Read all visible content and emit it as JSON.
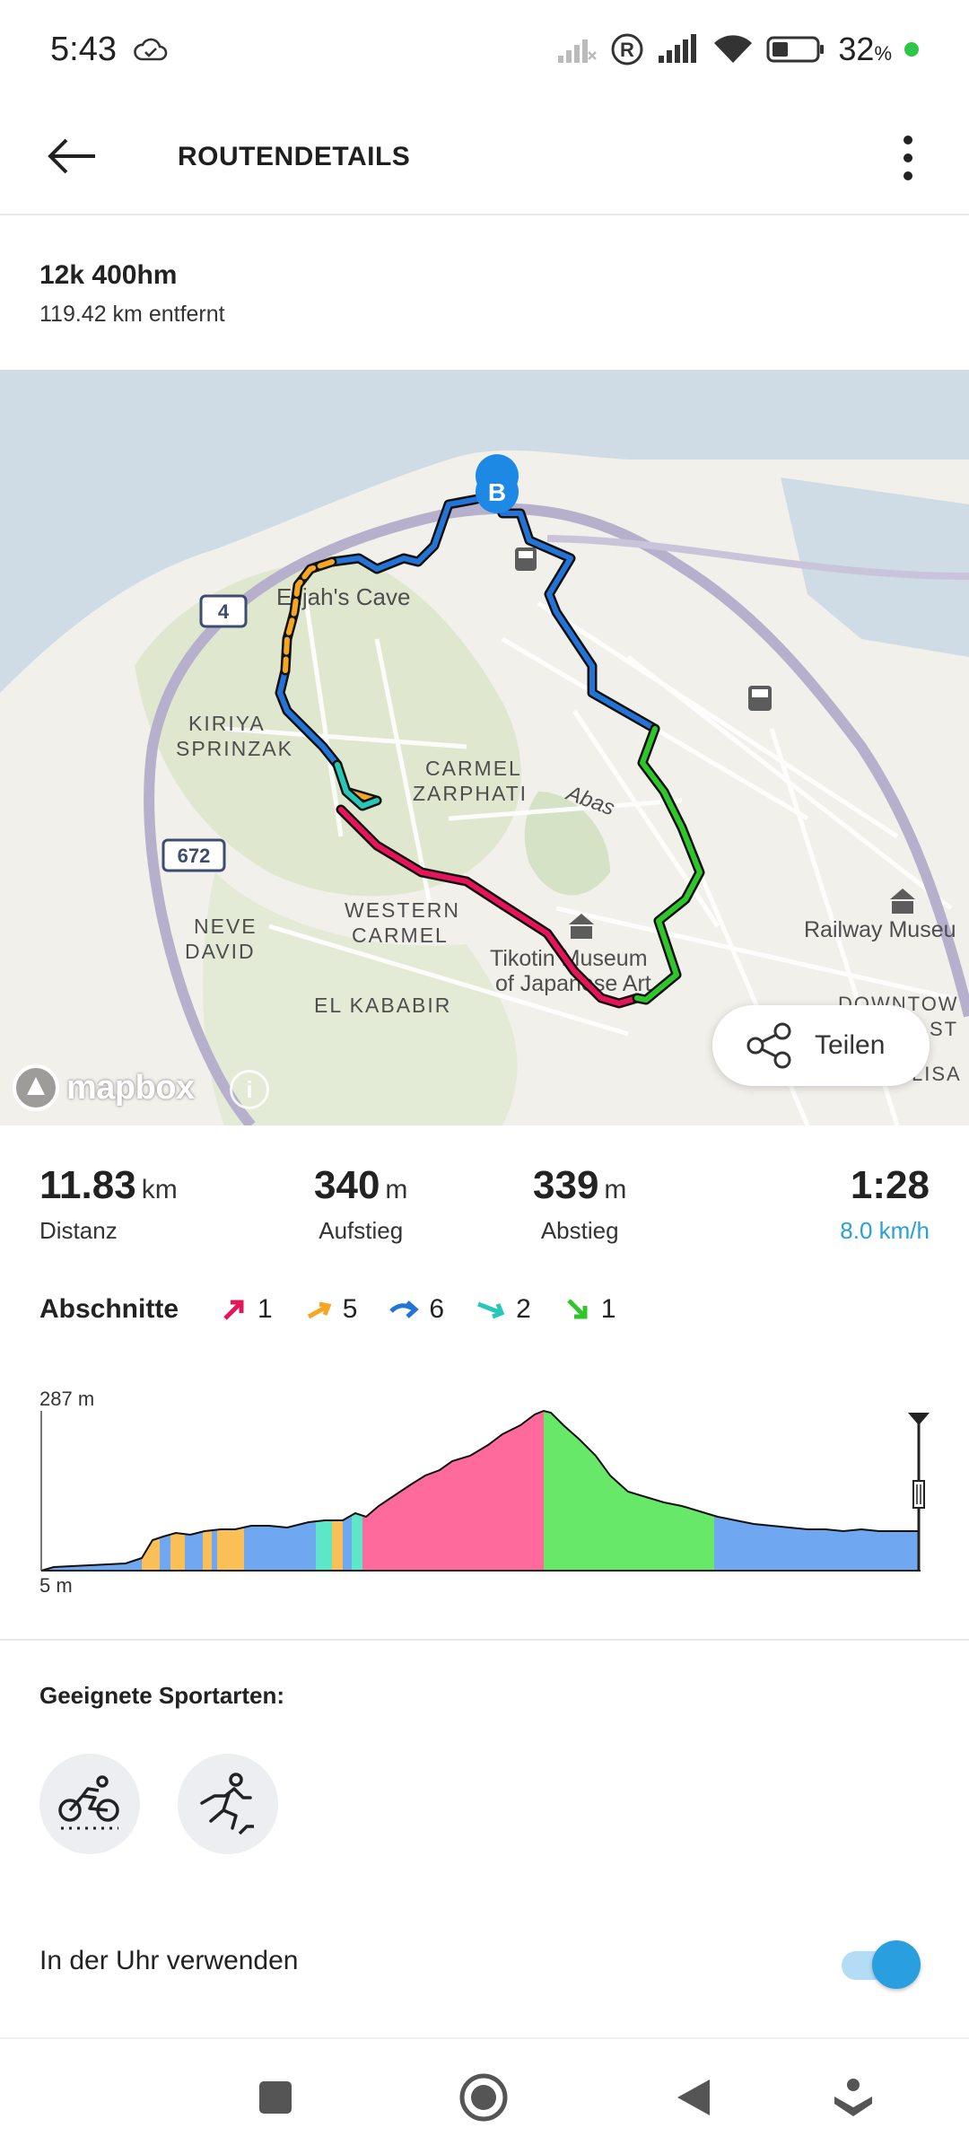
{
  "status_bar": {
    "time": "5:43",
    "battery_percent": "32",
    "battery_unit": "%",
    "icons": [
      "cloud-check-icon",
      "no-signal-icon",
      "registered-icon",
      "signal-icon",
      "wifi-icon",
      "battery-icon"
    ]
  },
  "app_bar": {
    "title": "ROUTENDETAILS",
    "back_icon": "arrow-left-icon",
    "menu_icon": "more-vertical-icon"
  },
  "route": {
    "name": "12k 400hm",
    "distance_away": "119.42 km entfernt"
  },
  "map": {
    "marker_label": "B",
    "labels": {
      "elijahs_cave": "Elijah's Cave",
      "kiriya": "KIRIYA",
      "sprinzak": "SPRINZAK",
      "carmel_zarphati_1": "CARMEL",
      "carmel_zarphati_2": "ZARPHATI",
      "abas": "Abas",
      "western_carmel_1": "WESTERN",
      "western_carmel_2": "CARMEL",
      "neve_david_1": "NEVE",
      "neve_david_2": "DAVID",
      "el_kababir": "EL KABABIR",
      "tikotin_1": "Tikotin Museum",
      "tikotin_2": "of Japanese Art",
      "railway": "Railway Museu",
      "downtown_1": "DOWNTOW",
      "downtown_2": "ST",
      "halisa": "LISA",
      "road_4": "4",
      "road_672": "672"
    },
    "attribution": "mapbox",
    "share_label": "Teilen"
  },
  "stats": {
    "distance": {
      "value": "11.83",
      "unit": "km",
      "label": "Distanz"
    },
    "ascent": {
      "value": "340",
      "unit": "m",
      "label": "Aufstieg"
    },
    "descent": {
      "value": "339",
      "unit": "m",
      "label": "Abstieg"
    },
    "duration": {
      "value": "1:28",
      "speed": "8.0 km/h"
    }
  },
  "sections": {
    "title": "Abschnitte",
    "items": [
      {
        "icon": "arrow-up-right-icon",
        "color": "#e8145a",
        "count": "1"
      },
      {
        "icon": "arrow-slight-up-icon",
        "color": "#f5a623",
        "count": "5"
      },
      {
        "icon": "arrow-right-icon",
        "color": "#2474d8",
        "count": "6"
      },
      {
        "icon": "arrow-slight-down-icon",
        "color": "#27c8b8",
        "count": "2"
      },
      {
        "icon": "arrow-down-right-icon",
        "color": "#2ec62a",
        "count": "1"
      }
    ]
  },
  "elevation": {
    "max_label": "287 m",
    "min_label": "5 m"
  },
  "sports": {
    "title": "Geeignete Sportarten:",
    "items": [
      "cycling-icon",
      "trail-running-icon"
    ]
  },
  "watch": {
    "label": "In der Uhr verwenden",
    "enabled": true
  },
  "nav_bar": {
    "icons": [
      "recents-square-icon",
      "home-circle-icon",
      "back-triangle-icon",
      "assistant-icon"
    ]
  }
}
